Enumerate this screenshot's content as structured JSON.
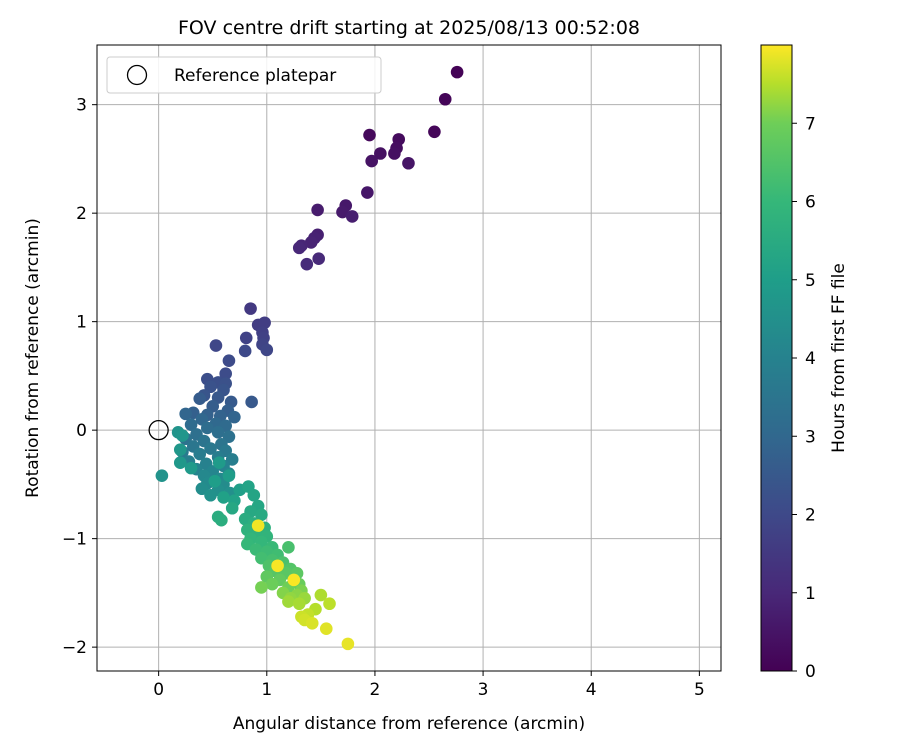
{
  "chart_data": {
    "type": "scatter",
    "title": "FOV centre drift starting at 2025/08/13 00:52:08",
    "xlabel": "Angular distance from reference (arcmin)",
    "ylabel": "Rotation from reference (arcmin)",
    "xlim": [
      -0.57,
      5.2
    ],
    "ylim": [
      -2.22,
      3.55
    ],
    "xticks": [
      0,
      1,
      2,
      3,
      4,
      5
    ],
    "xtick_labels": [
      "0",
      "1",
      "2",
      "3",
      "4",
      "5"
    ],
    "yticks": [
      -2,
      -1,
      0,
      1,
      2,
      3
    ],
    "ytick_labels": [
      "−2",
      "−1",
      "0",
      "1",
      "2",
      "3"
    ],
    "grid": true,
    "legend": {
      "placement": "top-left",
      "entries": [
        "Reference platepar"
      ]
    },
    "reference_point": {
      "x": 0,
      "y": 0
    },
    "colorbar": {
      "label": "Hours from first FF file",
      "colormap": "viridis",
      "range": [
        0,
        8
      ],
      "ticks": [
        0,
        1,
        2,
        3,
        4,
        5,
        6,
        7
      ],
      "tick_labels": [
        "0",
        "1",
        "2",
        "3",
        "4",
        "5",
        "6",
        "7"
      ]
    },
    "points": [
      [
        2.76,
        3.3,
        0.05
      ],
      [
        2.65,
        3.05,
        0.1
      ],
      [
        2.55,
        2.75,
        0.15
      ],
      [
        1.95,
        2.72,
        0.2
      ],
      [
        2.22,
        2.68,
        0.25
      ],
      [
        2.2,
        2.6,
        0.3
      ],
      [
        2.18,
        2.55,
        0.35
      ],
      [
        2.05,
        2.55,
        0.4
      ],
      [
        1.97,
        2.48,
        0.45
      ],
      [
        2.31,
        2.46,
        0.5
      ],
      [
        1.93,
        2.19,
        0.55
      ],
      [
        1.73,
        2.07,
        0.6
      ],
      [
        1.7,
        2.01,
        0.65
      ],
      [
        1.47,
        2.03,
        0.7
      ],
      [
        1.79,
        1.97,
        0.75
      ],
      [
        1.47,
        1.8,
        0.8
      ],
      [
        1.44,
        1.77,
        0.85
      ],
      [
        1.41,
        1.73,
        0.9
      ],
      [
        1.32,
        1.7,
        0.95
      ],
      [
        1.3,
        1.68,
        1.0
      ],
      [
        1.48,
        1.58,
        1.05
      ],
      [
        1.37,
        1.53,
        1.1
      ],
      [
        0.85,
        1.12,
        1.5
      ],
      [
        0.92,
        0.97,
        1.6
      ],
      [
        0.98,
        0.99,
        1.65
      ],
      [
        0.96,
        0.9,
        1.7
      ],
      [
        0.97,
        0.85,
        1.75
      ],
      [
        0.81,
        0.85,
        1.8
      ],
      [
        0.96,
        0.79,
        1.85
      ],
      [
        1.0,
        0.74,
        1.9
      ],
      [
        0.53,
        0.78,
        1.95
      ],
      [
        0.8,
        0.73,
        2.0
      ],
      [
        0.65,
        0.64,
        2.05
      ],
      [
        0.62,
        0.52,
        2.1
      ],
      [
        0.45,
        0.47,
        2.15
      ],
      [
        0.55,
        0.44,
        2.2
      ],
      [
        0.62,
        0.43,
        2.25
      ],
      [
        0.48,
        0.4,
        2.3
      ],
      [
        0.6,
        0.37,
        2.35
      ],
      [
        0.42,
        0.32,
        2.4
      ],
      [
        0.55,
        0.3,
        2.45
      ],
      [
        0.86,
        0.26,
        2.5
      ],
      [
        0.67,
        0.26,
        2.55
      ],
      [
        0.38,
        0.29,
        2.6
      ],
      [
        0.5,
        0.22,
        2.65
      ],
      [
        0.64,
        0.18,
        2.7
      ],
      [
        0.32,
        0.16,
        2.75
      ],
      [
        0.45,
        0.14,
        2.8
      ],
      [
        0.57,
        0.13,
        2.85
      ],
      [
        0.7,
        0.12,
        2.9
      ],
      [
        0.25,
        0.15,
        2.95
      ],
      [
        0.4,
        0.1,
        3.0
      ],
      [
        0.53,
        0.06,
        3.05
      ],
      [
        0.62,
        0.04,
        3.1
      ],
      [
        0.3,
        0.05,
        3.15
      ],
      [
        0.45,
        0.02,
        3.2
      ],
      [
        0.55,
        -0.02,
        3.25
      ],
      [
        0.35,
        -0.04,
        3.3
      ],
      [
        0.65,
        -0.06,
        3.35
      ],
      [
        0.25,
        -0.08,
        3.4
      ],
      [
        0.42,
        -0.1,
        3.45
      ],
      [
        0.58,
        -0.13,
        3.5
      ],
      [
        0.32,
        -0.15,
        3.55
      ],
      [
        0.48,
        -0.17,
        3.6
      ],
      [
        0.62,
        -0.19,
        3.65
      ],
      [
        0.22,
        -0.2,
        3.7
      ],
      [
        0.38,
        -0.22,
        3.75
      ],
      [
        0.55,
        -0.25,
        3.8
      ],
      [
        0.68,
        -0.27,
        3.85
      ],
      [
        0.28,
        -0.29,
        3.9
      ],
      [
        0.44,
        -0.31,
        3.95
      ],
      [
        0.6,
        -0.33,
        4.0
      ],
      [
        0.35,
        -0.36,
        4.05
      ],
      [
        0.5,
        -0.38,
        4.1
      ],
      [
        0.65,
        -0.4,
        4.15
      ],
      [
        0.42,
        -0.42,
        4.2
      ],
      [
        0.57,
        -0.45,
        4.25
      ],
      [
        0.45,
        -0.49,
        4.3
      ],
      [
        0.6,
        -0.5,
        4.35
      ],
      [
        0.4,
        -0.54,
        4.4
      ],
      [
        0.55,
        -0.55,
        4.45
      ],
      [
        0.66,
        -0.58,
        4.5
      ],
      [
        0.48,
        -0.6,
        4.55
      ],
      [
        0.03,
        -0.42,
        4.6
      ],
      [
        0.18,
        -0.02,
        4.65
      ],
      [
        0.22,
        -0.05,
        4.7
      ],
      [
        0.2,
        -0.18,
        4.75
      ],
      [
        0.2,
        -0.3,
        4.8
      ],
      [
        0.3,
        -0.35,
        4.85
      ],
      [
        0.56,
        -0.3,
        4.9
      ],
      [
        0.65,
        -0.42,
        4.95
      ],
      [
        0.52,
        -0.47,
        5.0
      ],
      [
        0.75,
        -0.55,
        5.05
      ],
      [
        0.6,
        -0.62,
        5.1
      ],
      [
        0.7,
        -0.65,
        5.15
      ],
      [
        0.83,
        -0.52,
        5.2
      ],
      [
        0.88,
        -0.6,
        5.25
      ],
      [
        0.92,
        -0.7,
        5.3
      ],
      [
        0.68,
        -0.72,
        5.35
      ],
      [
        0.85,
        -0.75,
        5.4
      ],
      [
        0.95,
        -0.78,
        5.45
      ],
      [
        0.8,
        -0.82,
        5.5
      ],
      [
        0.55,
        -0.8,
        5.55
      ],
      [
        0.58,
        -0.83,
        5.6
      ],
      [
        0.88,
        -0.86,
        5.65
      ],
      [
        0.98,
        -0.9,
        5.7
      ],
      [
        0.82,
        -0.92,
        5.75
      ],
      [
        0.92,
        -0.95,
        5.8
      ],
      [
        1.0,
        -0.98,
        5.85
      ],
      [
        0.85,
        -1.0,
        5.9
      ],
      [
        0.95,
        -1.03,
        5.95
      ],
      [
        0.82,
        -1.05,
        6.0
      ],
      [
        1.05,
        -1.08,
        6.05
      ],
      [
        0.9,
        -1.1,
        6.1
      ],
      [
        1.0,
        -1.12,
        6.15
      ],
      [
        1.1,
        -1.15,
        6.2
      ],
      [
        0.95,
        -1.18,
        6.25
      ],
      [
        1.05,
        -1.2,
        6.3
      ],
      [
        1.2,
        -1.08,
        6.35
      ],
      [
        1.15,
        -1.22,
        6.4
      ],
      [
        1.02,
        -1.25,
        6.45
      ],
      [
        1.12,
        -1.27,
        6.5
      ],
      [
        1.22,
        -1.28,
        6.55
      ],
      [
        1.08,
        -1.3,
        6.6
      ],
      [
        1.18,
        -1.32,
        6.65
      ],
      [
        1.28,
        -1.32,
        6.7
      ],
      [
        1.0,
        -1.35,
        6.75
      ],
      [
        1.12,
        -1.38,
        6.8
      ],
      [
        1.25,
        -1.4,
        6.85
      ],
      [
        1.3,
        -1.42,
        6.9
      ],
      [
        1.05,
        -1.42,
        6.95
      ],
      [
        1.2,
        -1.45,
        7.0
      ],
      [
        0.95,
        -1.45,
        7.05
      ],
      [
        1.32,
        -1.48,
        7.1
      ],
      [
        1.15,
        -1.5,
        7.15
      ],
      [
        1.28,
        -1.52,
        7.2
      ],
      [
        1.22,
        -1.55,
        7.25
      ],
      [
        1.35,
        -1.55,
        7.3
      ],
      [
        1.2,
        -1.58,
        7.35
      ],
      [
        1.3,
        -1.6,
        7.4
      ],
      [
        1.5,
        -1.52,
        7.45
      ],
      [
        1.45,
        -1.65,
        7.5
      ],
      [
        1.58,
        -1.6,
        7.55
      ],
      [
        1.38,
        -1.7,
        7.6
      ],
      [
        1.32,
        -1.72,
        7.65
      ],
      [
        1.35,
        -1.75,
        7.7
      ],
      [
        1.42,
        -1.78,
        7.75
      ],
      [
        1.55,
        -1.83,
        7.8
      ],
      [
        1.75,
        -1.97,
        7.85
      ],
      [
        0.92,
        -0.88,
        7.9
      ],
      [
        1.1,
        -1.25,
        7.95
      ],
      [
        1.25,
        -1.38,
        7.98
      ]
    ]
  }
}
